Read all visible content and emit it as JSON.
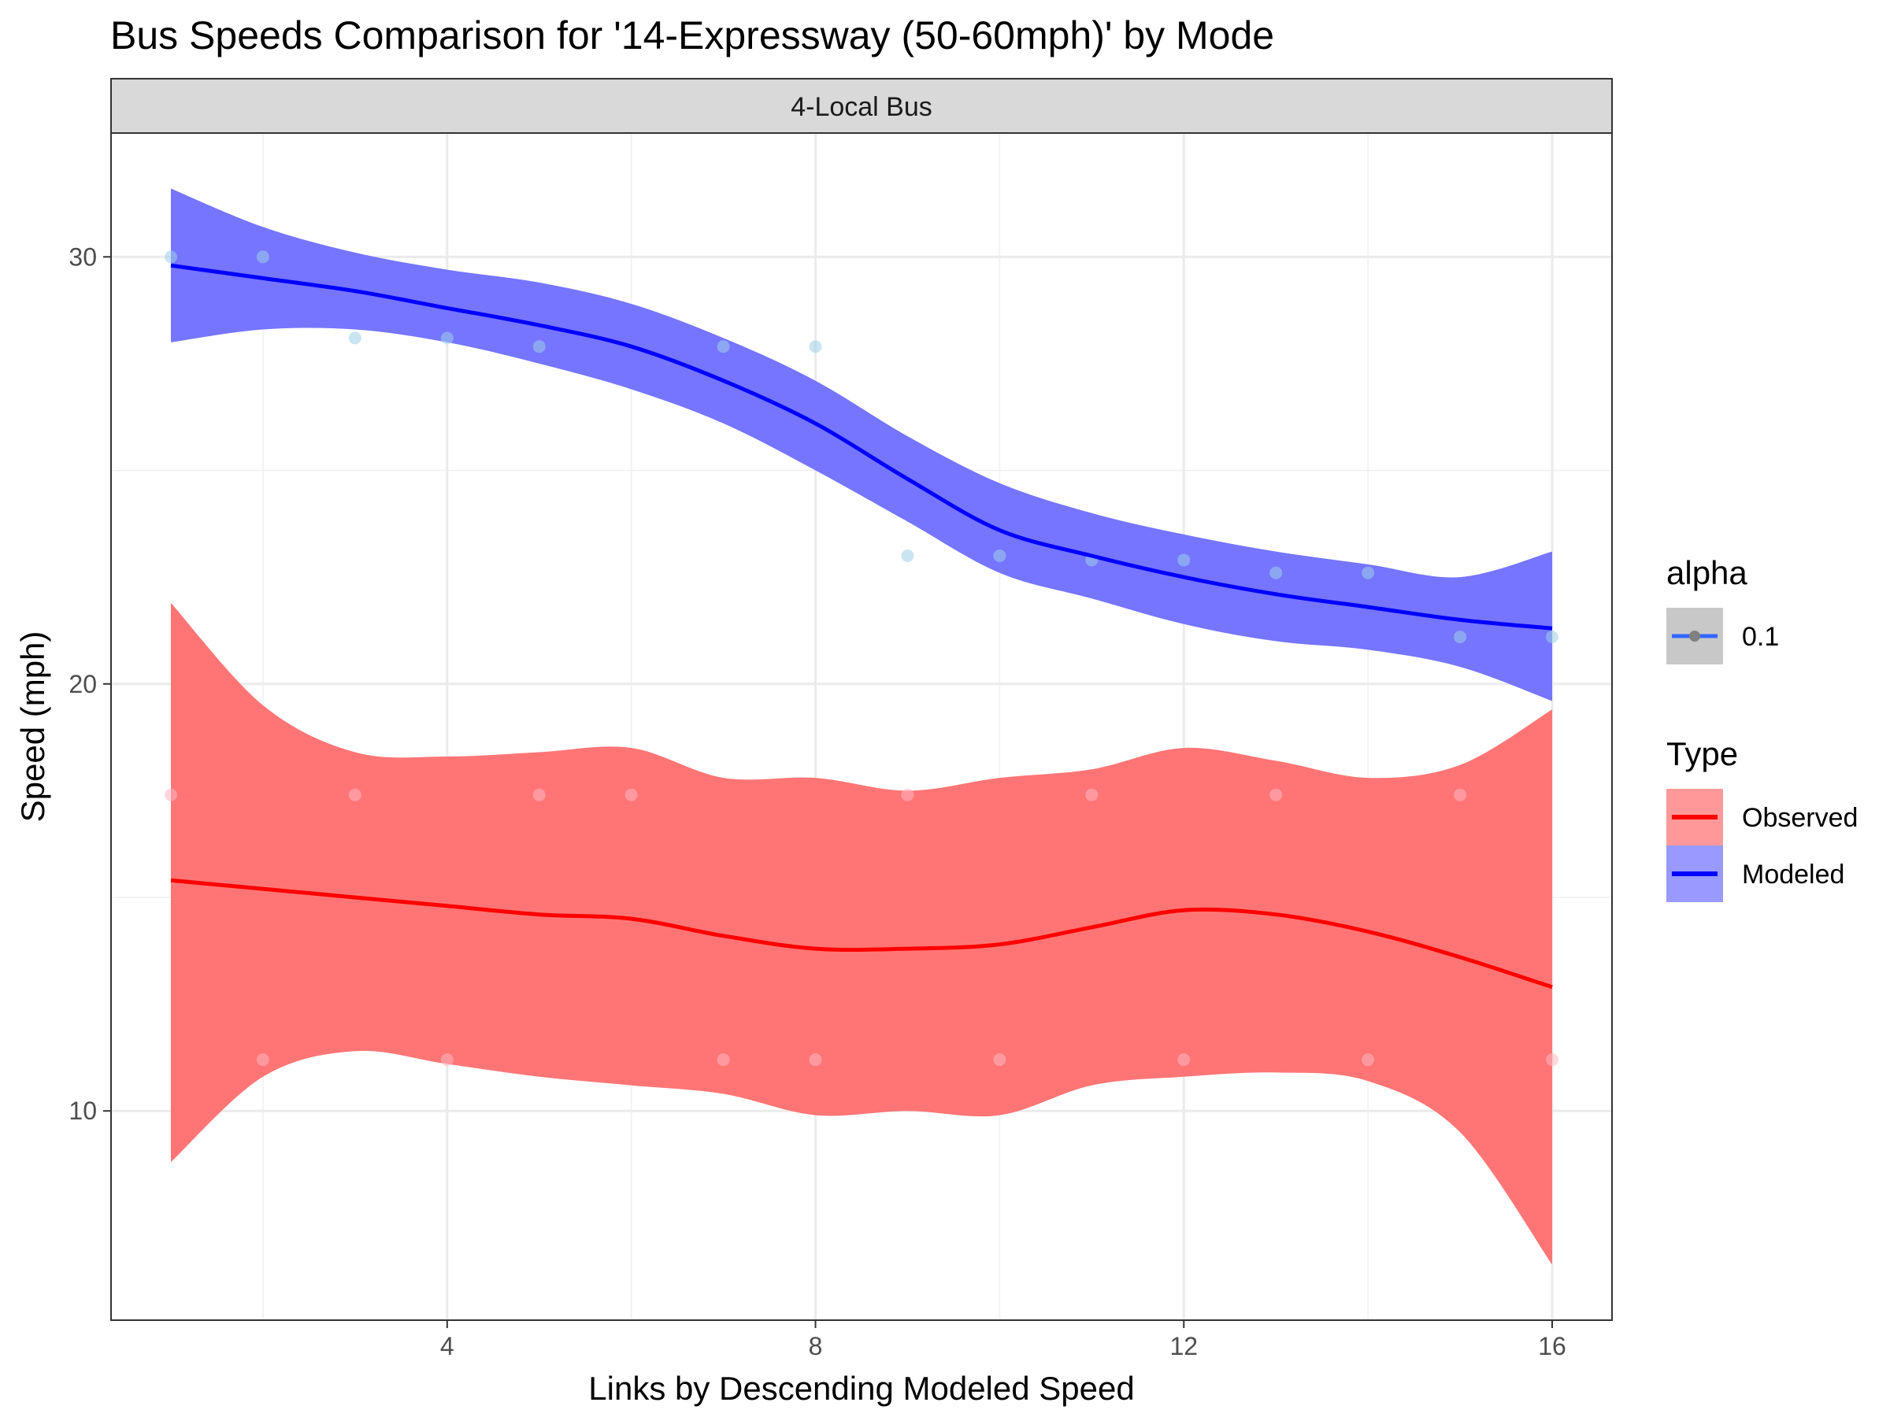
{
  "chart_data": {
    "type": "line",
    "title": "Bus Speeds Comparison for '14-Expressway (50-60mph)' by Mode",
    "facet_label": "4-Local Bus",
    "xlabel": "Links by Descending Modeled Speed",
    "ylabel": "Speed (mph)",
    "xlim": [
      0.35,
      16.65
    ],
    "ylim": [
      5.1,
      32.9
    ],
    "x_ticks": [
      4,
      8,
      12,
      16
    ],
    "y_ticks": [
      10,
      20,
      30
    ],
    "grid": true,
    "legend_position": "right",
    "legends": [
      {
        "title": "alpha",
        "entries": [
          {
            "label": "0.1",
            "color": "#3366ff"
          }
        ]
      },
      {
        "title": "Type",
        "entries": [
          {
            "label": "Observed",
            "color": "#ff0000",
            "fill": "#ff8080"
          },
          {
            "label": "Modeled",
            "color": "#0000ff",
            "fill": "#8080ff"
          }
        ]
      }
    ],
    "series": [
      {
        "name": "Modeled",
        "color": "#0000ff",
        "band_color": "#7575ff",
        "point_color": "#9fd0e6",
        "points": [
          [
            1,
            30.0
          ],
          [
            2,
            30.0
          ],
          [
            3,
            28.1
          ],
          [
            4,
            28.1
          ],
          [
            5,
            27.9
          ],
          [
            7,
            27.9
          ],
          [
            8,
            27.9
          ],
          [
            9,
            23.0
          ],
          [
            10,
            23.0
          ],
          [
            11,
            22.9
          ],
          [
            12,
            22.9
          ],
          [
            13,
            22.6
          ],
          [
            14,
            22.6
          ],
          [
            15,
            21.1
          ],
          [
            16,
            21.1
          ]
        ],
        "fit": [
          [
            1,
            29.8
          ],
          [
            2,
            29.5
          ],
          [
            3,
            29.2
          ],
          [
            4,
            28.8
          ],
          [
            5,
            28.4
          ],
          [
            6,
            27.9
          ],
          [
            7,
            27.1
          ],
          [
            8,
            26.1
          ],
          [
            9,
            24.8
          ],
          [
            10,
            23.6
          ],
          [
            11,
            23.0
          ],
          [
            12,
            22.5
          ],
          [
            13,
            22.1
          ],
          [
            14,
            21.8
          ],
          [
            15,
            21.5
          ],
          [
            16,
            21.3
          ]
        ],
        "lower": [
          [
            1,
            28.0
          ],
          [
            2,
            28.3
          ],
          [
            3,
            28.3
          ],
          [
            4,
            28.0
          ],
          [
            5,
            27.5
          ],
          [
            6,
            26.9
          ],
          [
            7,
            26.1
          ],
          [
            8,
            25.0
          ],
          [
            9,
            23.8
          ],
          [
            10,
            22.6
          ],
          [
            11,
            22.0
          ],
          [
            12,
            21.4
          ],
          [
            13,
            21.0
          ],
          [
            14,
            20.8
          ],
          [
            15,
            20.4
          ],
          [
            16,
            19.6
          ]
        ],
        "upper": [
          [
            1,
            31.6
          ],
          [
            2,
            30.7
          ],
          [
            3,
            30.1
          ],
          [
            4,
            29.7
          ],
          [
            5,
            29.4
          ],
          [
            6,
            28.9
          ],
          [
            7,
            28.1
          ],
          [
            8,
            27.1
          ],
          [
            9,
            25.8
          ],
          [
            10,
            24.7
          ],
          [
            11,
            24.0
          ],
          [
            12,
            23.5
          ],
          [
            13,
            23.1
          ],
          [
            14,
            22.8
          ],
          [
            15,
            22.5
          ],
          [
            16,
            23.1
          ]
        ]
      },
      {
        "name": "Observed",
        "color": "#ff0000",
        "band_color": "#ff7575",
        "point_color": "#ffb6c1",
        "points": [
          [
            1,
            17.4
          ],
          [
            2,
            11.2
          ],
          [
            3,
            17.4
          ],
          [
            4,
            11.2
          ],
          [
            5,
            17.4
          ],
          [
            6,
            17.4
          ],
          [
            7,
            11.2
          ],
          [
            8,
            11.2
          ],
          [
            9,
            17.4
          ],
          [
            10,
            11.2
          ],
          [
            11,
            17.4
          ],
          [
            12,
            11.2
          ],
          [
            13,
            17.4
          ],
          [
            14,
            11.2
          ],
          [
            15,
            17.4
          ],
          [
            16,
            11.2
          ]
        ],
        "fit": [
          [
            1,
            15.4
          ],
          [
            2,
            15.2
          ],
          [
            3,
            15.0
          ],
          [
            4,
            14.8
          ],
          [
            5,
            14.6
          ],
          [
            6,
            14.5
          ],
          [
            7,
            14.1
          ],
          [
            8,
            13.8
          ],
          [
            9,
            13.8
          ],
          [
            10,
            13.9
          ],
          [
            11,
            14.3
          ],
          [
            12,
            14.7
          ],
          [
            13,
            14.6
          ],
          [
            14,
            14.2
          ],
          [
            15,
            13.6
          ],
          [
            16,
            12.9
          ]
        ],
        "lower": [
          [
            1,
            8.8
          ],
          [
            2,
            10.8
          ],
          [
            3,
            11.4
          ],
          [
            4,
            11.1
          ],
          [
            5,
            10.8
          ],
          [
            6,
            10.6
          ],
          [
            7,
            10.4
          ],
          [
            8,
            9.9
          ],
          [
            9,
            10.0
          ],
          [
            10,
            9.9
          ],
          [
            11,
            10.6
          ],
          [
            12,
            10.8
          ],
          [
            13,
            10.9
          ],
          [
            14,
            10.7
          ],
          [
            15,
            9.5
          ],
          [
            16,
            6.4
          ]
        ],
        "upper": [
          [
            1,
            21.9
          ],
          [
            2,
            19.5
          ],
          [
            3,
            18.4
          ],
          [
            4,
            18.3
          ],
          [
            5,
            18.4
          ],
          [
            6,
            18.5
          ],
          [
            7,
            17.8
          ],
          [
            8,
            17.8
          ],
          [
            9,
            17.5
          ],
          [
            10,
            17.8
          ],
          [
            11,
            18.0
          ],
          [
            12,
            18.5
          ],
          [
            13,
            18.2
          ],
          [
            14,
            17.8
          ],
          [
            15,
            18.1
          ],
          [
            16,
            19.4
          ]
        ]
      }
    ]
  }
}
